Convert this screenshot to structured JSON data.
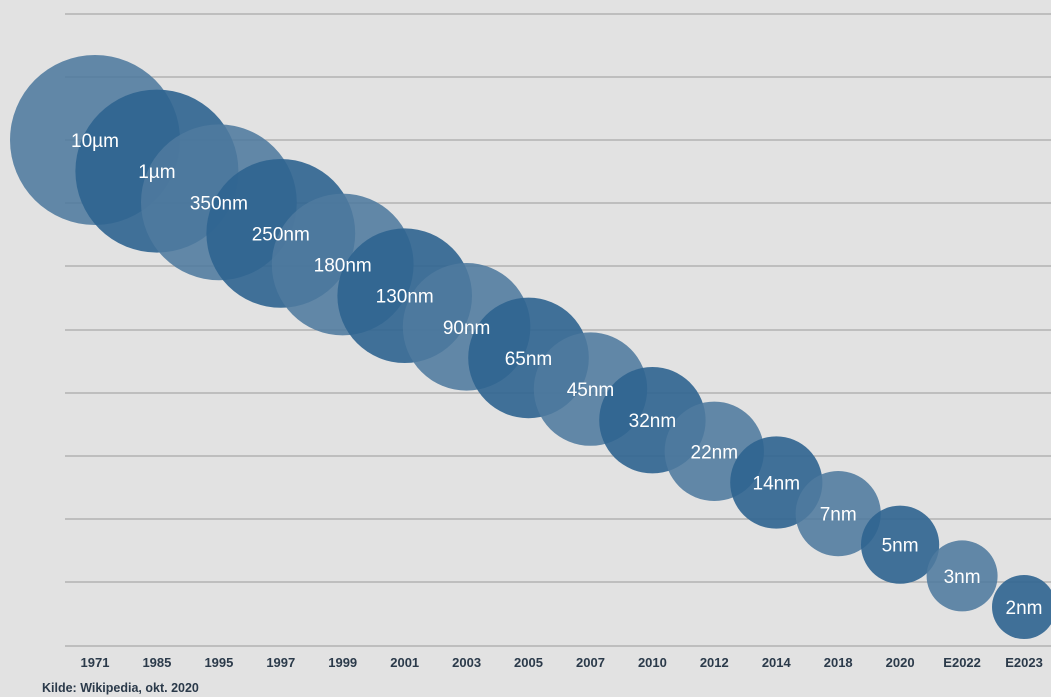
{
  "source": "Kilde: Wikipedia, okt. 2020",
  "chart_data": {
    "type": "bubble",
    "title": "",
    "xlabel": "",
    "ylabel": "",
    "grid": true,
    "categories": [
      "1971",
      "1985",
      "1995",
      "1997",
      "1999",
      "2001",
      "2003",
      "2005",
      "2007",
      "2010",
      "2012",
      "2014",
      "2018",
      "2020",
      "E2022",
      "E2023"
    ],
    "labels": [
      "10µm",
      "1µm",
      "350nm",
      "250nm",
      "180nm",
      "130nm",
      "90nm",
      "65nm",
      "45nm",
      "32nm",
      "22nm",
      "14nm",
      "7nm",
      "5nm",
      "3nm",
      "2nm"
    ],
    "rank": [
      1,
      2,
      3,
      4,
      5,
      6,
      7,
      8,
      9,
      10,
      11,
      12,
      13,
      14,
      15,
      16
    ],
    "colors": {
      "dark": "#2f6490",
      "light": "#4f7a9e",
      "grid": "#a9a9a9",
      "text": "#ffffff",
      "axis_text": "#2b3a4a"
    }
  }
}
